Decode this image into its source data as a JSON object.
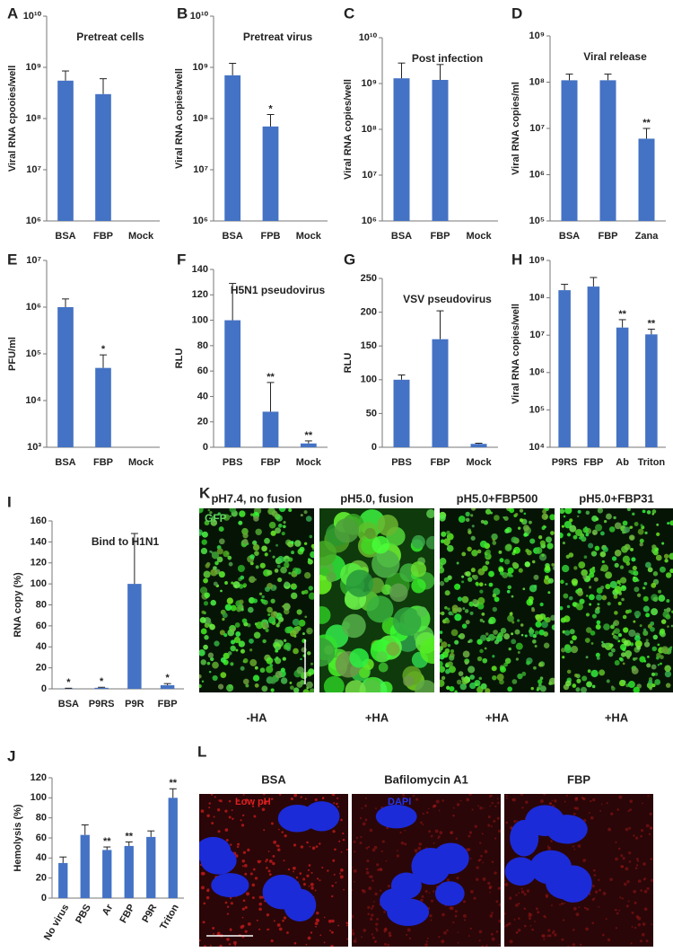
{
  "chart_data": [
    {
      "type": "bar",
      "panel_label": "A",
      "title": "Pretreat cells",
      "y_label": "Viral RNA cpooies/well",
      "log_y": true,
      "color": "#4472c4",
      "categories": [
        "BSA",
        "FBP",
        "Mock"
      ],
      "values": [
        550000000,
        300000000,
        null
      ],
      "errors": [
        300000000,
        300000000,
        null
      ],
      "ylim": [
        1000000,
        10000000000
      ],
      "yticks": [
        {
          "value": 1000000,
          "label": "10⁶"
        },
        {
          "value": 10000000,
          "label": "10⁷"
        },
        {
          "value": 100000000,
          "label": "10⁸"
        },
        {
          "value": 1000000000,
          "label": "10⁹"
        },
        {
          "value": 10000000000,
          "label": "10¹⁰"
        }
      ]
    },
    {
      "type": "bar",
      "panel_label": "B",
      "title": "Pretreat virus",
      "y_label": "Viral RNA copies/well",
      "log_y": true,
      "color": "#4472c4",
      "categories": [
        "BSA",
        "FPB",
        "Mock"
      ],
      "values": [
        700000000,
        70000000,
        null
      ],
      "errors": [
        500000000,
        50000000,
        null
      ],
      "sig_labels": [
        null,
        "*",
        null
      ],
      "ylim": [
        1000000,
        10000000000
      ],
      "yticks": [
        {
          "value": 1000000,
          "label": "10⁶"
        },
        {
          "value": 10000000,
          "label": "10⁷"
        },
        {
          "value": 100000000,
          "label": "10⁸"
        },
        {
          "value": 1000000000,
          "label": "10⁹"
        },
        {
          "value": 10000000000,
          "label": "10¹⁰"
        }
      ]
    },
    {
      "type": "bar",
      "panel_label": "C",
      "title": "Post infection",
      "y_label": "Viral RNA copies/well",
      "log_y": true,
      "color": "#4472c4",
      "categories": [
        "BSA",
        "FBP",
        "Mock"
      ],
      "values": [
        1300000000,
        1200000000,
        null
      ],
      "errors": [
        1500000000,
        1400000000,
        null
      ],
      "ylim": [
        1000000,
        10000000000
      ],
      "yticks": [
        {
          "value": 1000000,
          "label": "10⁶"
        },
        {
          "value": 10000000,
          "label": "10⁷"
        },
        {
          "value": 100000000,
          "label": "10⁸"
        },
        {
          "value": 1000000000,
          "label": "10⁹"
        },
        {
          "value": 10000000000,
          "label": "10¹⁰"
        }
      ]
    },
    {
      "type": "bar",
      "panel_label": "D",
      "title": "Viral release",
      "y_label": "Viral RNA copies/ml",
      "log_y": true,
      "color": "#4472c4",
      "categories": [
        "BSA",
        "FBP",
        "Zana"
      ],
      "values": [
        110000000,
        110000000,
        6000000
      ],
      "errors": [
        40000000,
        40000000,
        4000000
      ],
      "sig_labels": [
        null,
        null,
        "**"
      ],
      "ylim": [
        100000,
        1000000000
      ],
      "yticks": [
        {
          "value": 100000,
          "label": "10⁵"
        },
        {
          "value": 1000000,
          "label": "10⁶"
        },
        {
          "value": 10000000,
          "label": "10⁷"
        },
        {
          "value": 100000000,
          "label": "10⁸"
        },
        {
          "value": 1000000000,
          "label": "10⁹"
        }
      ]
    },
    {
      "type": "bar",
      "panel_label": "E",
      "y_label": "PFU/ml",
      "log_y": true,
      "color": "#4472c4",
      "categories": [
        "BSA",
        "FBP",
        "Mock"
      ],
      "values": [
        1000000,
        50000,
        null
      ],
      "errors": [
        500000,
        45000,
        null
      ],
      "sig_labels": [
        null,
        "*",
        null
      ],
      "ylim": [
        1000,
        10000000
      ],
      "yticks": [
        {
          "value": 1000,
          "label": "10³"
        },
        {
          "value": 10000,
          "label": "10⁴"
        },
        {
          "value": 100000,
          "label": "10⁵"
        },
        {
          "value": 1000000,
          "label": "10⁶"
        },
        {
          "value": 10000000,
          "label": "10⁷"
        }
      ]
    },
    {
      "type": "bar",
      "panel_label": "F",
      "title": "H5N1 pseudovirus",
      "y_label": "RLU",
      "log_y": false,
      "color": "#4472c4",
      "categories": [
        "PBS",
        "FBP",
        "Mock"
      ],
      "values": [
        100,
        28,
        3
      ],
      "errors": [
        29,
        23,
        2
      ],
      "sig_labels": [
        null,
        "**",
        "**"
      ],
      "ylim": [
        0,
        140
      ],
      "yticks": [
        0,
        20,
        40,
        60,
        80,
        100,
        120,
        140
      ]
    },
    {
      "type": "bar",
      "panel_label": "G",
      "title": "VSV pseudovirus",
      "y_label": "RLU",
      "log_y": false,
      "color": "#4472c4",
      "categories": [
        "PBS",
        "FBP",
        "Mock"
      ],
      "values": [
        100,
        160,
        5
      ],
      "errors": [
        7,
        42,
        1
      ],
      "ylim": [
        0,
        250
      ],
      "yticks": [
        0,
        50,
        100,
        150,
        200,
        250
      ]
    },
    {
      "type": "bar",
      "panel_label": "H",
      "y_label": "Viral RNA copies/well",
      "log_y": true,
      "color": "#4472c4",
      "categories": [
        "P9RS",
        "FBP",
        "Ab",
        "Triton"
      ],
      "values": [
        160000000,
        200000000,
        16000000,
        10500000
      ],
      "errors": [
        70000000,
        150000000,
        10000000,
        4000000
      ],
      "sig_labels": [
        null,
        null,
        "**",
        "**"
      ],
      "ylim": [
        10000,
        1000000000
      ],
      "yticks": [
        {
          "value": 10000,
          "label": "10⁴"
        },
        {
          "value": 100000,
          "label": "10⁵"
        },
        {
          "value": 1000000,
          "label": "10⁶"
        },
        {
          "value": 10000000,
          "label": "10⁷"
        },
        {
          "value": 100000000,
          "label": "10⁸"
        },
        {
          "value": 1000000000,
          "label": "10⁹"
        }
      ]
    },
    {
      "type": "bar",
      "panel_label": "I",
      "title": "Bind to H1N1",
      "y_label": "RNA copy (%)",
      "log_y": false,
      "color": "#4472c4",
      "categories": [
        "BSA",
        "P9RS",
        "P9R",
        "FBP"
      ],
      "values": [
        0.3,
        1,
        100,
        3.5
      ],
      "errors": [
        0.3,
        0.5,
        48,
        1.5
      ],
      "sig_labels": [
        "*",
        "*",
        null,
        "*"
      ],
      "ylim": [
        0,
        160
      ],
      "yticks": [
        0,
        20,
        40,
        60,
        80,
        100,
        120,
        140,
        160
      ]
    },
    {
      "type": "bar",
      "panel_label": "J",
      "y_label": "Hemolysis (%)",
      "log_y": false,
      "color": "#4472c4",
      "rotate_categories": true,
      "categories": [
        "No virus",
        "PBS",
        "Ar",
        "FBP",
        "P9R",
        "Triton"
      ],
      "values": [
        35,
        63,
        48,
        52,
        61,
        100
      ],
      "errors": [
        6,
        10,
        3,
        4,
        6,
        9
      ],
      "sig_labels": [
        null,
        null,
        "**",
        "**",
        null,
        "**"
      ],
      "ylim": [
        0,
        120
      ],
      "yticks": [
        0,
        20,
        40,
        60,
        80,
        100,
        120
      ]
    }
  ],
  "image_panels": [
    {
      "panel_label": "K",
      "channel_label": "GFP",
      "columns": [
        {
          "title": "pH7.4, no fusion",
          "footer": "-HA"
        },
        {
          "title": "pH5.0, fusion",
          "footer": "+HA"
        },
        {
          "title": "pH5.0+FBP500",
          "footer": "+HA"
        },
        {
          "title": "pH5.0+FBP31",
          "footer": "+HA"
        }
      ]
    },
    {
      "panel_label": "L",
      "channel_labels": [
        "Low pH",
        "DAPI"
      ],
      "columns": [
        {
          "title": "BSA"
        },
        {
          "title": "Bafilomycin A1"
        },
        {
          "title": "FBP"
        }
      ]
    }
  ]
}
